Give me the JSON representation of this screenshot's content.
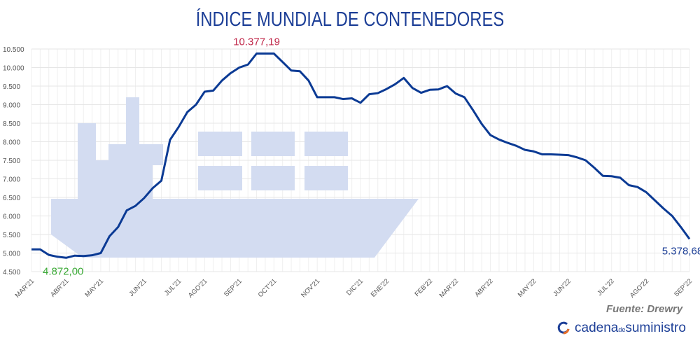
{
  "chart_data": {
    "type": "line",
    "title": "ÍNDICE MUNDIAL DE CONTENEDORES",
    "ylim": [
      4500,
      10500
    ],
    "yticks": [
      4500,
      5000,
      5500,
      6000,
      6500,
      7000,
      7500,
      8000,
      8500,
      9000,
      9500,
      10000,
      10500
    ],
    "ytick_labels": [
      "4.500",
      "5.000",
      "5.500",
      "6.000",
      "6.500",
      "7.000",
      "7.500",
      "8.000",
      "8.500",
      "9.000",
      "9.500",
      "10.000",
      "10.500"
    ],
    "grid": true,
    "values": [
      5100,
      5100,
      4950,
      4900,
      4872,
      4930,
      4920,
      4940,
      5000,
      5450,
      5700,
      6150,
      6270,
      6480,
      6750,
      6950,
      8050,
      8400,
      8800,
      9000,
      9350,
      9380,
      9650,
      9850,
      10000,
      10080,
      10377.19,
      10377,
      10377,
      10150,
      9920,
      9900,
      9650,
      9200,
      9200,
      9200,
      9150,
      9170,
      9050,
      9280,
      9310,
      9420,
      9550,
      9720,
      9450,
      9320,
      9400,
      9410,
      9500,
      9300,
      9200,
      8850,
      8480,
      8180,
      8060,
      7970,
      7890,
      7780,
      7740,
      7660,
      7660,
      7650,
      7640,
      7580,
      7500,
      7300,
      7080,
      7070,
      7030,
      6830,
      6780,
      6640,
      6420,
      6200,
      6000,
      5700,
      5378.68
    ],
    "xticks": [
      {
        "label": "MAR'21",
        "i": 0
      },
      {
        "label": "ABR'21",
        "i": 4
      },
      {
        "label": "MAY'21",
        "i": 8
      },
      {
        "label": "JUN'21",
        "i": 13
      },
      {
        "label": "JUL'21",
        "i": 17
      },
      {
        "label": "AGO'21",
        "i": 20
      },
      {
        "label": "SEP'21",
        "i": 24
      },
      {
        "label": "OCT'21",
        "i": 28
      },
      {
        "label": "NOV'21",
        "i": 33
      },
      {
        "label": "DIC'21",
        "i": 38
      },
      {
        "label": "ENE'22",
        "i": 41
      },
      {
        "label": "FEB'22",
        "i": 46
      },
      {
        "label": "MAR'22",
        "i": 49
      },
      {
        "label": "ABR'22",
        "i": 53
      },
      {
        "label": "MAY'22",
        "i": 58
      },
      {
        "label": "JUN'22",
        "i": 62
      },
      {
        "label": "JUL'22",
        "i": 67
      },
      {
        "label": "AGO'22",
        "i": 71
      },
      {
        "label": "SEP'22",
        "i": 76
      }
    ],
    "annotations": [
      {
        "text": "10.377,19",
        "i": 26,
        "value": 10377.19,
        "color": "#c0284a"
      },
      {
        "text": "4.872,00",
        "i": 4,
        "value": 4872,
        "color": "#3aa935"
      },
      {
        "text": "5.378,68",
        "i": 76,
        "value": 5378.68,
        "color": "#1d3f97"
      }
    ],
    "line_color": "#0b3a94"
  },
  "source": "Fuente: Drewry",
  "brand": {
    "a": "cadena",
    "b": "de",
    "c": "suministro"
  }
}
